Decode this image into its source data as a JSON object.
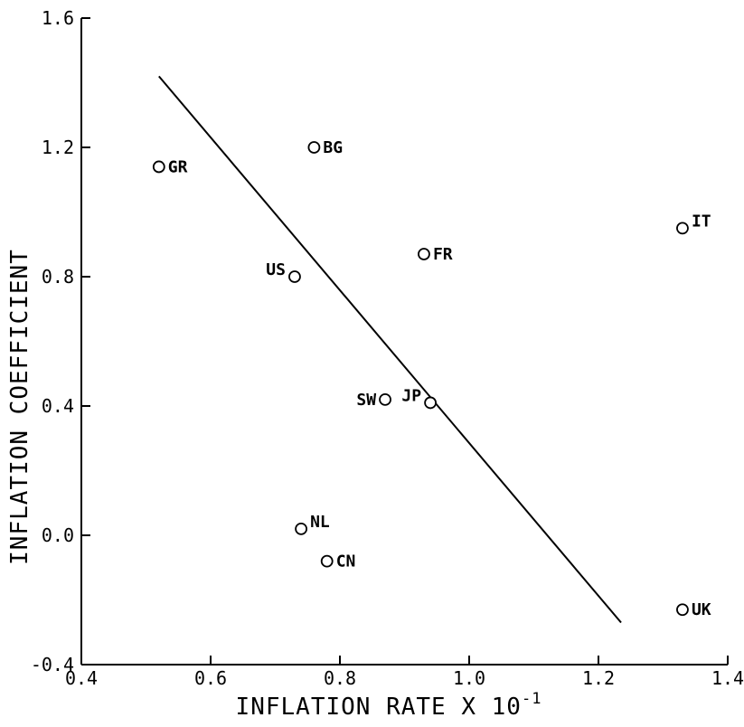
{
  "chart_data": {
    "type": "scatter",
    "title": "",
    "xlabel": "INFLATION RATE X 10",
    "xlabel_sup": "-1",
    "ylabel": "INFLATION COEFFICIENT",
    "xlim": [
      0.4,
      1.4
    ],
    "ylim": [
      -0.4,
      1.6
    ],
    "x_tick_labels": [
      "0.4",
      "0.6",
      "0.8",
      "1.0",
      "1.2",
      "1.4"
    ],
    "x_ticks": [
      0.4,
      0.6,
      0.8,
      1.0,
      1.2,
      1.4
    ],
    "y_tick_labels": [
      "-0.4",
      "0.0",
      "0.4",
      "0.8",
      "1.2",
      "1.6"
    ],
    "y_ticks": [
      -0.4,
      0.0,
      0.4,
      0.8,
      1.2,
      1.6
    ],
    "grid": false,
    "points": [
      {
        "label": "GR",
        "x": 0.52,
        "y": 1.14,
        "label_side": "right"
      },
      {
        "label": "BG",
        "x": 0.76,
        "y": 1.2,
        "label_side": "right"
      },
      {
        "label": "IT",
        "x": 1.33,
        "y": 0.95,
        "label_side": "right-up"
      },
      {
        "label": "FR",
        "x": 0.93,
        "y": 0.87,
        "label_side": "right"
      },
      {
        "label": "US",
        "x": 0.73,
        "y": 0.8,
        "label_side": "left-up"
      },
      {
        "label": "SW",
        "x": 0.87,
        "y": 0.42,
        "label_side": "left"
      },
      {
        "label": "JP",
        "x": 0.94,
        "y": 0.41,
        "label_side": "left-up"
      },
      {
        "label": "NL",
        "x": 0.74,
        "y": 0.02,
        "label_side": "right-up"
      },
      {
        "label": "CN",
        "x": 0.78,
        "y": -0.08,
        "label_side": "right"
      },
      {
        "label": "UK",
        "x": 1.33,
        "y": -0.23,
        "label_side": "right"
      }
    ],
    "fit_line": {
      "x": [
        0.52,
        1.235
      ],
      "y": [
        1.42,
        -0.27
      ]
    }
  }
}
